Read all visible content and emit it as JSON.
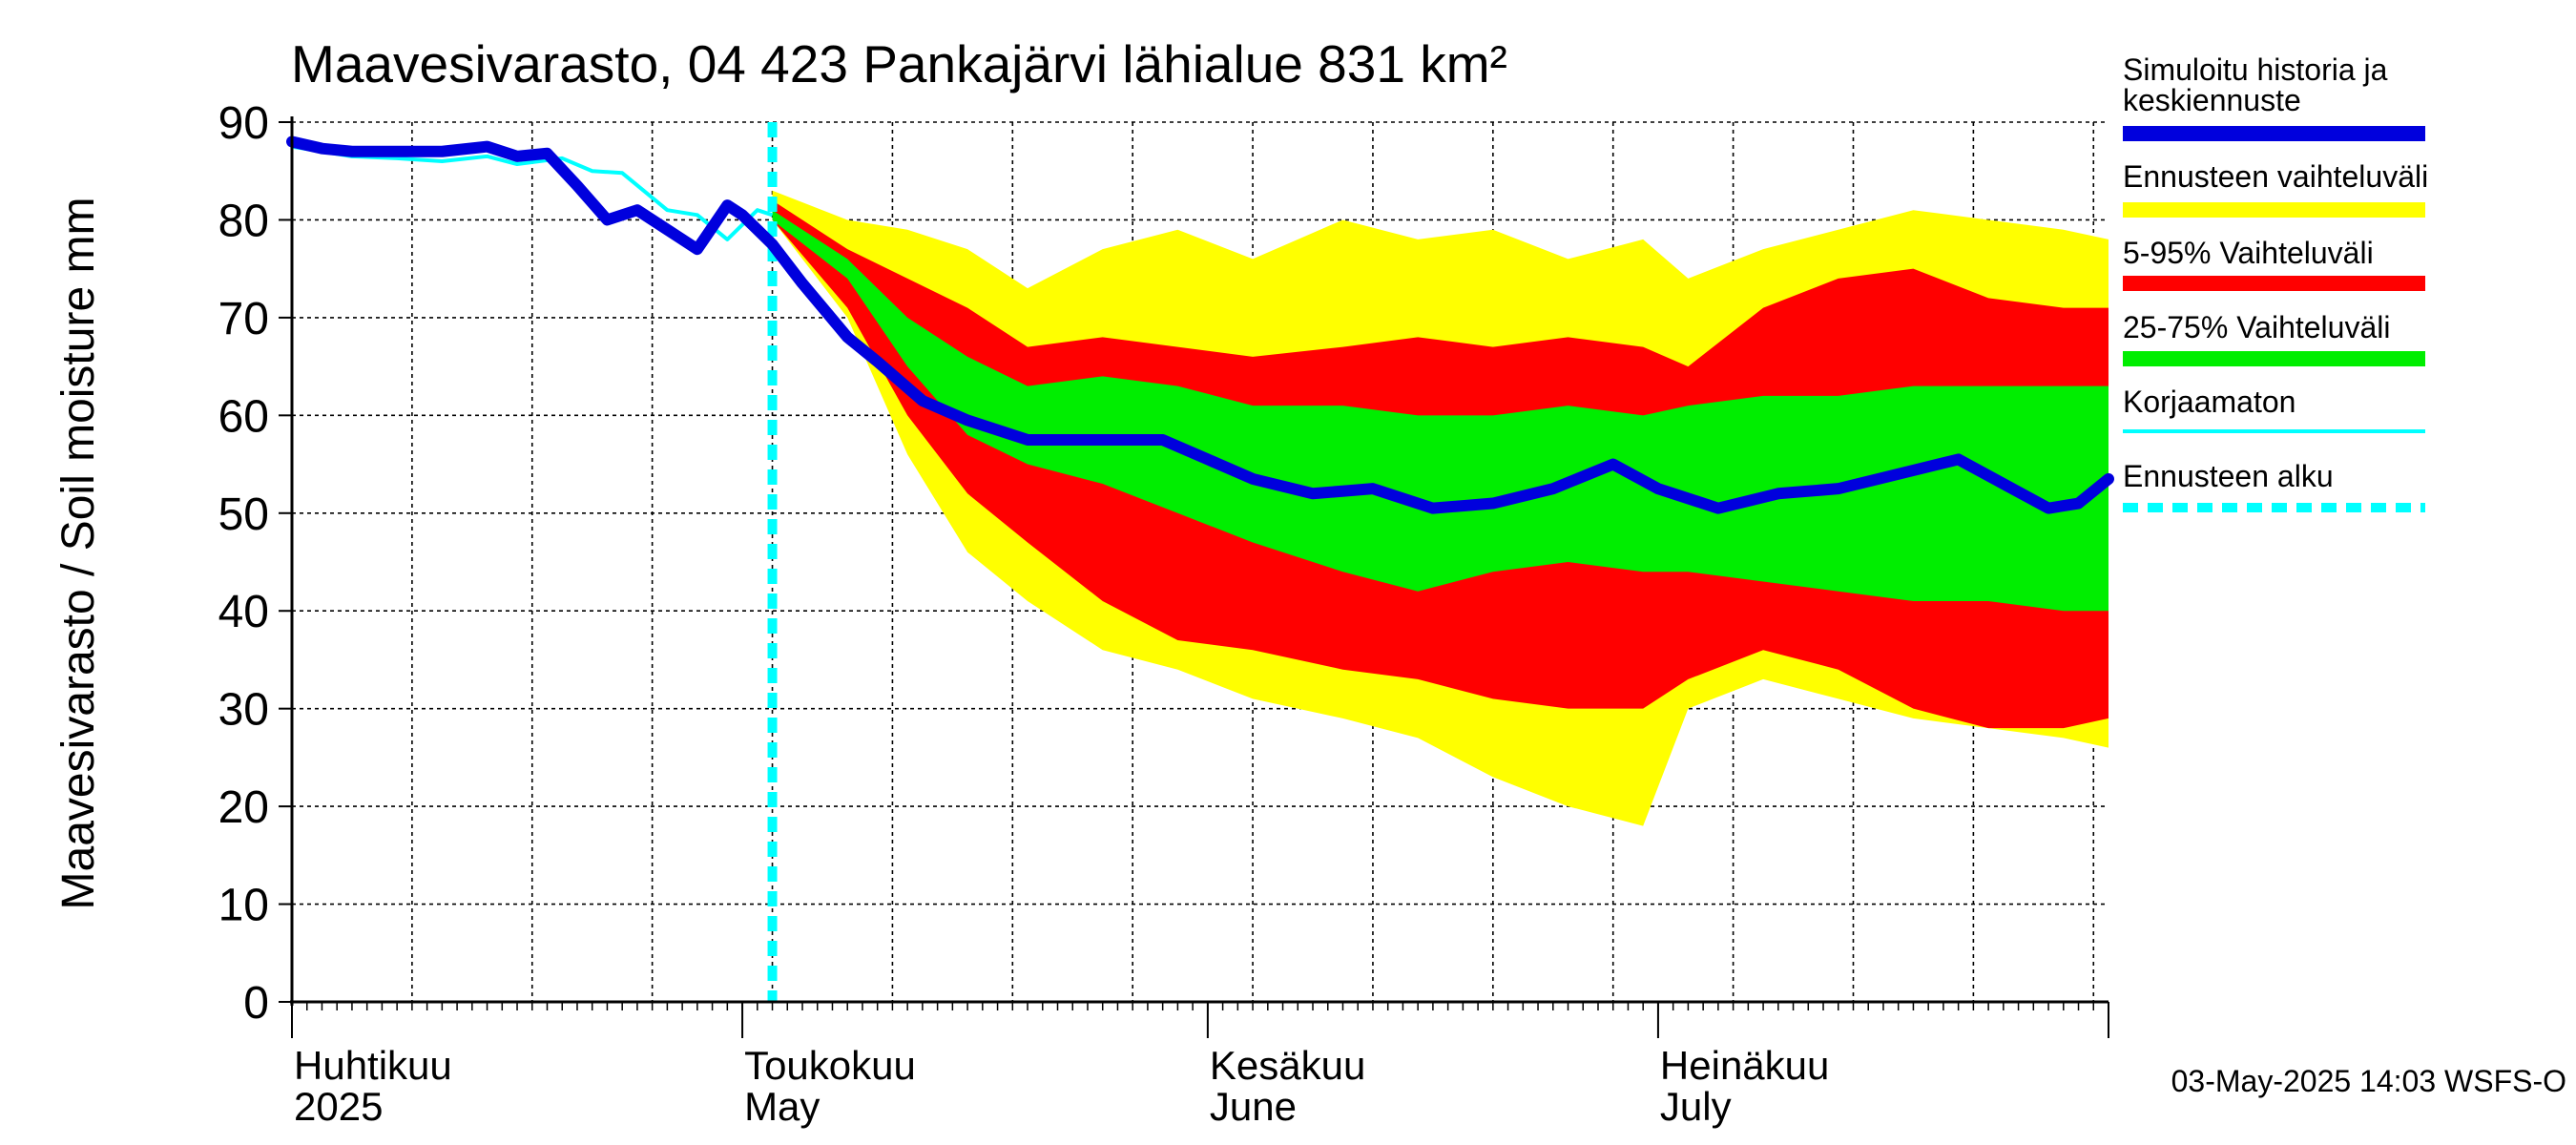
{
  "chart_data": {
    "type": "area",
    "title": "Maavesivarasto, 04 423 Pankajärvi lähialue 831 km²",
    "ylabel": "Maavesivarasto / Soil moisture   mm",
    "ylim": [
      0,
      90
    ],
    "y_ticks": [
      0,
      10,
      20,
      30,
      40,
      50,
      60,
      70,
      80,
      90
    ],
    "xlim": [
      "2025-04-01",
      "2025-07-31"
    ],
    "grid": true,
    "x_months": [
      {
        "date": "2025-04-01",
        "label1": "Huhtikuu",
        "label2": "2025"
      },
      {
        "date": "2025-05-01",
        "label1": "Toukokuu",
        "label2": "May"
      },
      {
        "date": "2025-06-01",
        "label1": "Kesäkuu",
        "label2": "June"
      },
      {
        "date": "2025-07-01",
        "label1": "Heinäkuu",
        "label2": "July"
      }
    ],
    "forecast_start": "2025-05-03",
    "footer": "03-May-2025 14:03 WSFS-O",
    "legend": {
      "placement": "right",
      "entries": [
        {
          "label": "Simuloitu historia ja keskiennuste",
          "color": "#0000dd",
          "style": "thick"
        },
        {
          "label": "Ennusteen vaihteluväli",
          "color": "#ffff00",
          "style": "thick"
        },
        {
          "label": "5-95% Vaihteluväli",
          "color": "#ff0000",
          "style": "thick"
        },
        {
          "label": "25-75% Vaihteluväli",
          "color": "#00ee00",
          "style": "thick"
        },
        {
          "label": "Korjaamaton",
          "color": "#00ffff",
          "style": "thin"
        },
        {
          "label": "Ennusteen alku",
          "color": "#00ffff",
          "style": "dashed"
        }
      ]
    },
    "series": [
      {
        "name": "Simuloitu historia ja keskiennuste",
        "dates": [
          "2025-04-01",
          "2025-04-03",
          "2025-04-05",
          "2025-04-08",
          "2025-04-11",
          "2025-04-14",
          "2025-04-16",
          "2025-04-18",
          "2025-04-20",
          "2025-04-22",
          "2025-04-24",
          "2025-04-26",
          "2025-04-28",
          "2025-04-30",
          "2025-05-01",
          "2025-05-03",
          "2025-05-05",
          "2025-05-08",
          "2025-05-10",
          "2025-05-13",
          "2025-05-16",
          "2025-05-20",
          "2025-05-25",
          "2025-05-29",
          "2025-06-01",
          "2025-06-04",
          "2025-06-08",
          "2025-06-12",
          "2025-06-16",
          "2025-06-20",
          "2025-06-24",
          "2025-06-28",
          "2025-07-01",
          "2025-07-05",
          "2025-07-09",
          "2025-07-13",
          "2025-07-17",
          "2025-07-21",
          "2025-07-24",
          "2025-07-27",
          "2025-07-29",
          "2025-07-31"
        ],
        "values": [
          88,
          87.3,
          87,
          87,
          87,
          87.5,
          86.5,
          86.8,
          83.5,
          80,
          81,
          79,
          77,
          81.5,
          80.5,
          77.5,
          73.5,
          68,
          65.5,
          61.5,
          59.5,
          57.5,
          57.5,
          57.5,
          55.5,
          53.5,
          52,
          52.5,
          50.5,
          51,
          52.5,
          55,
          52.5,
          50.5,
          52,
          52.5,
          54,
          55.5,
          53,
          50.5,
          51,
          53.5
        ]
      },
      {
        "name": "Korjaamaton",
        "dates": [
          "2025-04-01",
          "2025-04-03",
          "2025-04-05",
          "2025-04-08",
          "2025-04-11",
          "2025-04-14",
          "2025-04-16",
          "2025-04-19",
          "2025-04-21",
          "2025-04-23",
          "2025-04-26",
          "2025-04-28",
          "2025-04-30",
          "2025-05-02",
          "2025-05-03"
        ],
        "values": [
          87.5,
          87,
          86.5,
          86.3,
          86,
          86.5,
          85.7,
          86.3,
          85,
          84.8,
          81,
          80.5,
          78,
          81,
          80.5
        ]
      },
      {
        "name": "Ennusteen vaihteluväli",
        "dates": [
          "2025-05-03",
          "2025-05-08",
          "2025-05-12",
          "2025-05-16",
          "2025-05-20",
          "2025-05-25",
          "2025-05-30",
          "2025-06-04",
          "2025-06-10",
          "2025-06-15",
          "2025-06-20",
          "2025-06-25",
          "2025-06-30",
          "2025-07-03",
          "2025-07-08",
          "2025-07-13",
          "2025-07-18",
          "2025-07-23",
          "2025-07-28",
          "2025-07-31"
        ],
        "upper": [
          83,
          80,
          79,
          77,
          73,
          77,
          79,
          76,
          80,
          78,
          79,
          76,
          78,
          74,
          77,
          79,
          81,
          80,
          79,
          78
        ],
        "lower": [
          80,
          70,
          56,
          46,
          41,
          36,
          34,
          31,
          29,
          27,
          23,
          20,
          18,
          30,
          33,
          31,
          29,
          28,
          27,
          26
        ]
      },
      {
        "name": "5-95% Vaihteluväli",
        "dates": [
          "2025-05-03",
          "2025-05-08",
          "2025-05-12",
          "2025-05-16",
          "2025-05-20",
          "2025-05-25",
          "2025-05-30",
          "2025-06-04",
          "2025-06-10",
          "2025-06-15",
          "2025-06-20",
          "2025-06-25",
          "2025-06-30",
          "2025-07-03",
          "2025-07-08",
          "2025-07-13",
          "2025-07-18",
          "2025-07-23",
          "2025-07-28",
          "2025-07-31"
        ],
        "upper": [
          82,
          77,
          74,
          71,
          67,
          68,
          67,
          66,
          67,
          68,
          67,
          68,
          67,
          65,
          71,
          74,
          75,
          72,
          71,
          71
        ],
        "lower": [
          80,
          71,
          60,
          52,
          47,
          41,
          37,
          36,
          34,
          33,
          31,
          30,
          30,
          33,
          36,
          34,
          30,
          28,
          28,
          29
        ]
      },
      {
        "name": "25-75% Vaihteluväli",
        "dates": [
          "2025-05-03",
          "2025-05-08",
          "2025-05-12",
          "2025-05-16",
          "2025-05-20",
          "2025-05-25",
          "2025-05-30",
          "2025-06-04",
          "2025-06-10",
          "2025-06-15",
          "2025-06-20",
          "2025-06-25",
          "2025-06-30",
          "2025-07-03",
          "2025-07-08",
          "2025-07-13",
          "2025-07-18",
          "2025-07-23",
          "2025-07-28",
          "2025-07-31"
        ],
        "upper": [
          81,
          76,
          70,
          66,
          63,
          64,
          63,
          61,
          61,
          60,
          60,
          61,
          60,
          61,
          62,
          62,
          63,
          63,
          63,
          63
        ],
        "lower": [
          80,
          74,
          65,
          58,
          55,
          53,
          50,
          47,
          44,
          42,
          44,
          45,
          44,
          44,
          43,
          42,
          41,
          41,
          40,
          40
        ]
      }
    ]
  }
}
